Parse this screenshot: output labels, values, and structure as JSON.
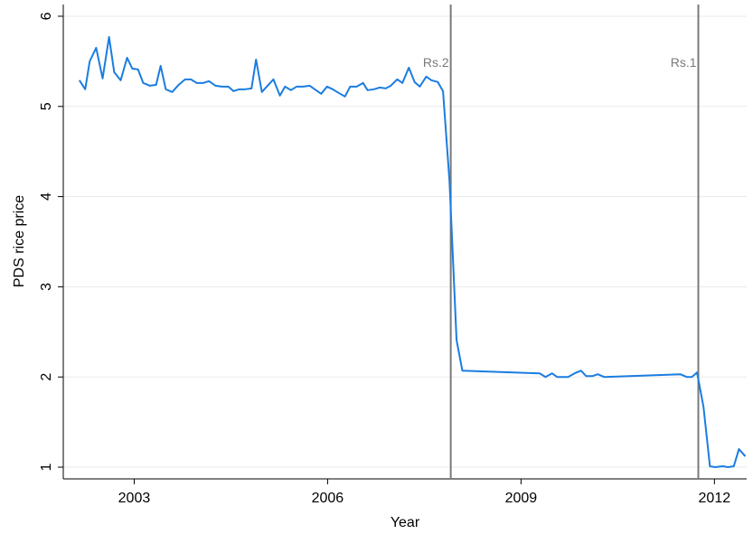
{
  "chart_data": {
    "type": "line",
    "xlabel": "Year",
    "ylabel": "PDS rice price",
    "x": [
      2002.15,
      2002.24,
      2002.31,
      2002.41,
      2002.51,
      2002.61,
      2002.69,
      2002.79,
      2002.89,
      2002.97,
      2003.06,
      2003.14,
      2003.24,
      2003.34,
      2003.41,
      2003.49,
      2003.59,
      2003.69,
      2003.79,
      2003.88,
      2003.97,
      2004.07,
      2004.16,
      2004.26,
      2004.36,
      2004.46,
      2004.54,
      2004.63,
      2004.72,
      2004.82,
      2004.89,
      2004.98,
      2005.07,
      2005.16,
      2005.26,
      2005.34,
      2005.43,
      2005.52,
      2005.62,
      2005.72,
      2005.8,
      2005.9,
      2005.99,
      2006.08,
      2006.17,
      2006.27,
      2006.35,
      2006.45,
      2006.55,
      2006.62,
      2006.72,
      2006.81,
      2006.9,
      2006.98,
      2007.08,
      2007.16,
      2007.26,
      2007.35,
      2007.43,
      2007.53,
      2007.61,
      2007.71,
      2007.79,
      2007.89,
      2008.0,
      2008.09,
      2009.29,
      2009.38,
      2009.48,
      2009.56,
      2009.73,
      2009.83,
      2009.93,
      2010.01,
      2010.11,
      2010.19,
      2010.29,
      2011.47,
      2011.57,
      2011.65,
      2011.73,
      2011.83,
      2011.93,
      2012.01,
      2012.13,
      2012.21,
      2012.3,
      2012.38,
      2012.48
    ],
    "series": [
      {
        "color": "#1a7de0",
        "values": [
          5.29,
          5.19,
          5.5,
          5.65,
          5.31,
          5.77,
          5.38,
          5.29,
          5.54,
          5.42,
          5.41,
          5.26,
          5.23,
          5.24,
          5.45,
          5.19,
          5.16,
          5.24,
          5.3,
          5.3,
          5.26,
          5.26,
          5.28,
          5.23,
          5.22,
          5.22,
          5.17,
          5.19,
          5.19,
          5.2,
          5.52,
          5.16,
          5.23,
          5.3,
          5.12,
          5.22,
          5.18,
          5.22,
          5.22,
          5.23,
          5.19,
          5.14,
          5.22,
          5.19,
          5.15,
          5.11,
          5.22,
          5.22,
          5.26,
          5.18,
          5.19,
          5.21,
          5.2,
          5.23,
          5.3,
          5.26,
          5.43,
          5.27,
          5.22,
          5.33,
          5.29,
          5.27,
          5.17,
          4.18,
          2.41,
          2.07,
          2.04,
          2.0,
          2.04,
          2.0,
          2.0,
          2.04,
          2.07,
          2.01,
          2.01,
          2.03,
          2.0,
          2.03,
          2.0,
          2.0,
          2.05,
          1.67,
          1.01,
          1.0,
          1.01,
          1.0,
          1.01,
          1.2,
          1.12
        ]
      }
    ],
    "xlim": [
      2001.9,
      2012.5
    ],
    "xticks": [
      2003,
      2006,
      2009,
      2012
    ],
    "ylim": [
      0.87,
      6.13
    ],
    "yticks": [
      1,
      2,
      3,
      4,
      5,
      6
    ],
    "grid": true,
    "vlines": [
      {
        "x": 2007.91,
        "label": "Rs.2",
        "color": "#7a7a7a"
      },
      {
        "x": 2011.75,
        "label": "Rs.1",
        "color": "#7a7a7a"
      }
    ]
  }
}
